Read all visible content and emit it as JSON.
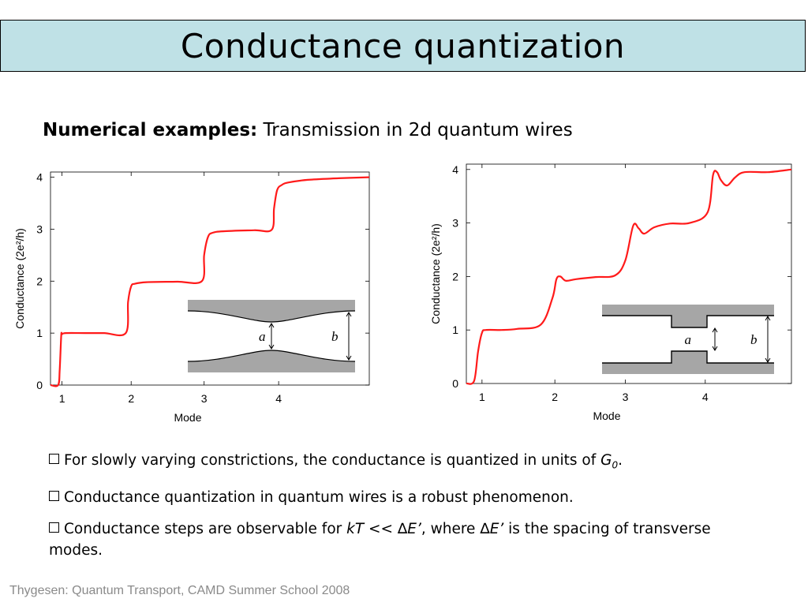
{
  "slide": {
    "title": "Conductance quantization",
    "subtitle_bold": "Numerical examples:",
    "subtitle_rest": " Transmission in 2d quantum wires",
    "footer": "Thygesen: Quantum Transport, CAMD Summer School 2008"
  },
  "bullets": [
    {
      "parts": [
        "For slowly varying constrictions, the conductance is quantized in units of ",
        "G",
        "0",
        "."
      ]
    },
    {
      "parts": [
        "Conductance quantization in quantum wires is a robust phenomenon."
      ]
    },
    {
      "parts": [
        "Conductance steps are observable for ",
        "kT",
        " << ∆",
        "E’",
        ", where ∆",
        "E’",
        " is the spacing of transverse modes."
      ]
    }
  ],
  "chart_data": [
    {
      "type": "line",
      "xlabel": "Mode",
      "ylabel": "Conductance (2e²/h)",
      "x_ticks": [
        "1",
        "2",
        "3",
        "4"
      ],
      "y_ticks": [
        "0",
        "1",
        "2",
        "3",
        "4"
      ],
      "ylim": [
        0,
        4.1
      ],
      "xlim": [
        0.85,
        5.0
      ],
      "series": [
        {
          "color": "#ff1a1a",
          "x": [
            0.85,
            0.95,
            0.97,
            0.99,
            1.0,
            1.05,
            1.3,
            1.55,
            1.83,
            1.86,
            1.9,
            1.95,
            2.1,
            2.5,
            2.82,
            2.85,
            2.9,
            2.96,
            3.1,
            3.5,
            3.73,
            3.76,
            3.8,
            3.86,
            3.95,
            4.2,
            4.6,
            5.0
          ],
          "y": [
            0.0,
            0.0,
            0.3,
            0.95,
            0.98,
            1.0,
            1.0,
            1.0,
            1.0,
            1.6,
            1.9,
            1.95,
            1.98,
            1.99,
            2.0,
            2.5,
            2.85,
            2.93,
            2.96,
            2.98,
            2.99,
            3.4,
            3.75,
            3.85,
            3.9,
            3.95,
            3.98,
            4.0
          ]
        }
      ],
      "inset": {
        "shape": "smooth-constriction",
        "labels": [
          "a",
          "b"
        ],
        "color": "#a6a6a6"
      }
    },
    {
      "type": "line",
      "xlabel": "Mode",
      "ylabel": "Conductance (2e²/h)",
      "x_ticks": [
        "1",
        "2",
        "3",
        "4"
      ],
      "y_ticks": [
        "0",
        "1",
        "2",
        "3",
        "4"
      ],
      "ylim": [
        0,
        4.1
      ],
      "xlim": [
        0.85,
        5.0
      ],
      "series": [
        {
          "color": "#ff1a1a",
          "x": [
            0.85,
            0.95,
            1.0,
            1.05,
            1.1,
            1.3,
            1.5,
            1.8,
            1.95,
            2.0,
            2.05,
            2.12,
            2.25,
            2.5,
            2.75,
            2.88,
            2.98,
            3.05,
            3.12,
            3.25,
            3.45,
            3.7,
            3.93,
            4.0,
            4.05,
            4.1,
            4.18,
            4.28,
            4.4,
            4.7,
            5.0
          ],
          "y": [
            0.0,
            0.05,
            0.6,
            0.95,
            1.0,
            1.0,
            1.02,
            1.1,
            1.6,
            1.95,
            2.0,
            1.92,
            1.95,
            1.99,
            2.02,
            2.3,
            2.95,
            2.9,
            2.8,
            2.92,
            2.99,
            3.0,
            3.2,
            3.9,
            3.95,
            3.8,
            3.7,
            3.85,
            3.95,
            3.95,
            4.0
          ]
        }
      ],
      "inset": {
        "shape": "abrupt-constriction",
        "labels": [
          "a",
          "b"
        ],
        "color": "#a6a6a6"
      }
    }
  ]
}
